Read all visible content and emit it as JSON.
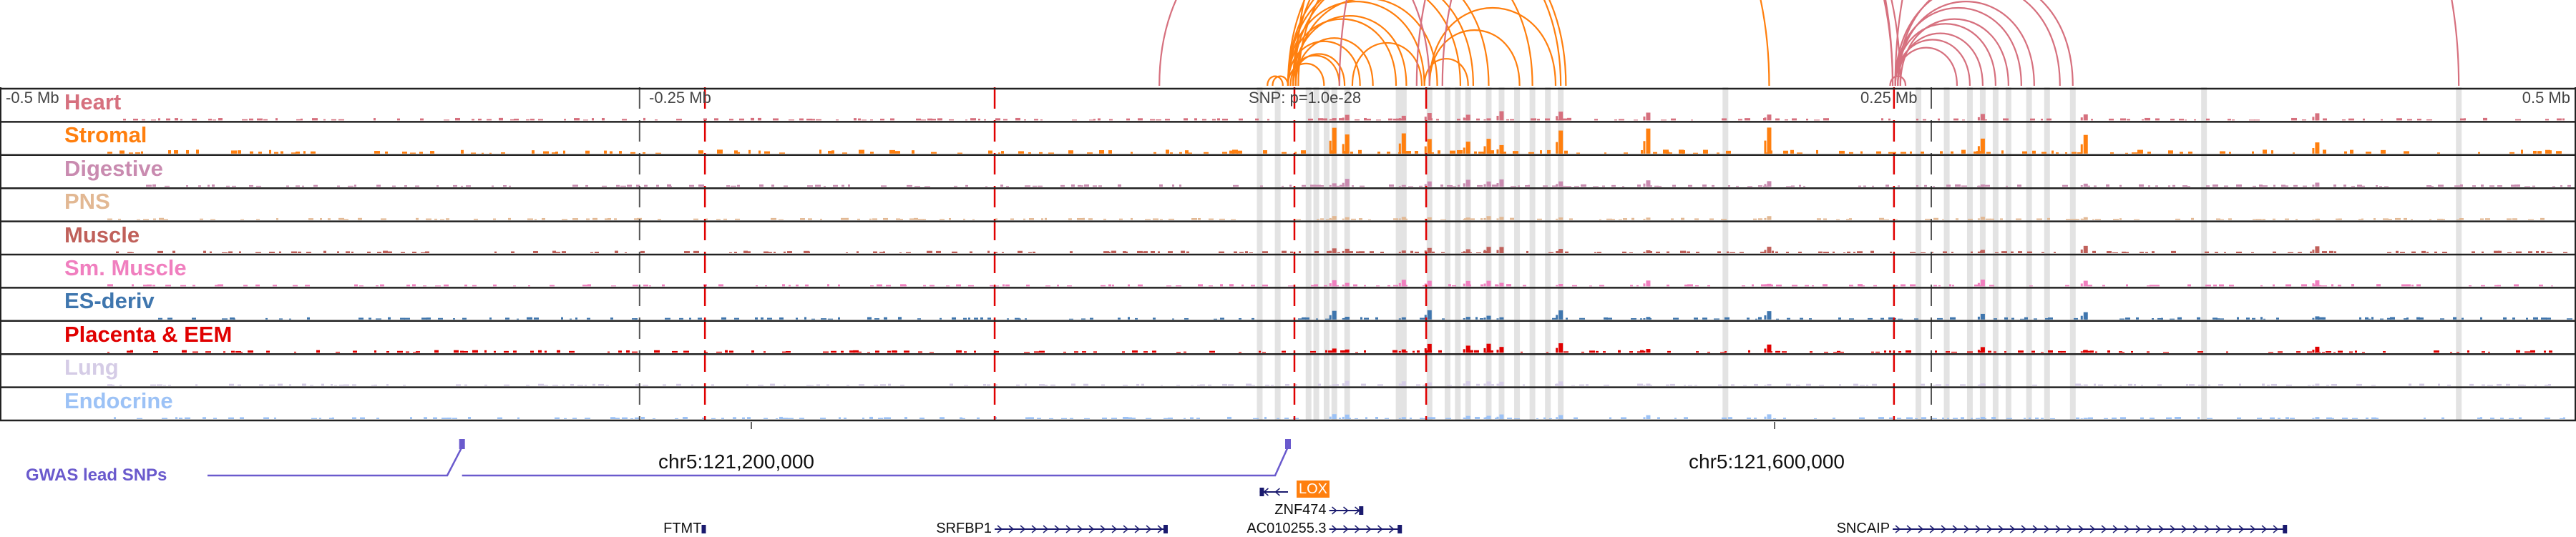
{
  "ruler": {
    "left": "-0.5 Mb",
    "midleft": "-0.25 Mb",
    "snp": "SNP: p=1.0e-28",
    "midright": "0.25 Mb",
    "right": "0.5 Mb"
  },
  "coords": [
    "chr5:121,200,000",
    "chr5:121,600,000"
  ],
  "gwas_label": "GWAS lead SNPs",
  "tracks": [
    {
      "label": "Heart",
      "color": "#d6707e",
      "gain": 0.35
    },
    {
      "label": "Stromal",
      "color": "#ff7f0e",
      "gain": 1.0
    },
    {
      "label": "Digestive",
      "color": "#c98bb0",
      "gain": 0.3
    },
    {
      "label": "PNS",
      "color": "#e2b893",
      "gain": 0.15
    },
    {
      "label": "Muscle",
      "color": "#c0605a",
      "gain": 0.3
    },
    {
      "label": "Sm. Muscle",
      "color": "#f07fbf",
      "gain": 0.25
    },
    {
      "label": "ES-deriv",
      "color": "#3f76ae",
      "gain": 0.35
    },
    {
      "label": "Placenta & EEM",
      "color": "#e00000",
      "gain": 0.35
    },
    {
      "label": "Lung",
      "color": "#d5cce6",
      "gain": 0.2
    },
    {
      "label": "Endocrine",
      "color": "#9cc2f6",
      "gain": 0.2
    }
  ],
  "highlight_regions_mb": [
    -0.011,
    -0.004,
    0.008,
    0.011,
    0.015,
    0.018,
    0.023,
    0.043,
    0.045,
    0.055,
    0.062,
    0.066,
    0.07,
    0.078,
    0.083,
    0.089,
    0.095,
    0.101,
    0.106,
    0.17,
    0.245,
    0.256,
    0.265,
    0.27,
    0.275,
    0.28,
    0.288,
    0.295,
    0.305,
    0.356,
    0.455
  ],
  "snp_lines_mb": [
    -0.2266,
    -0.114,
    0.0025,
    0.0537,
    0.2355
  ],
  "peaks_mb": [
    0.018,
    0.023,
    0.045,
    0.055,
    0.07,
    0.078,
    0.083,
    0.106,
    0.14,
    0.187,
    0.27,
    0.31,
    0.4
  ],
  "arcs": {
    "orange_color": "#ff7f0e",
    "pink_color": "#d6707e",
    "orange": [
      [
        -0.008,
        -0.002
      ],
      [
        -0.006,
        0.0
      ],
      [
        0.0,
        0.014
      ],
      [
        0.001,
        0.02
      ],
      [
        0.002,
        0.022
      ],
      [
        0.0,
        0.028
      ],
      [
        0.003,
        0.033
      ],
      [
        0.0,
        0.042
      ],
      [
        0.002,
        0.046
      ],
      [
        0.0,
        0.053
      ],
      [
        0.003,
        0.058
      ],
      [
        0.0,
        0.067
      ],
      [
        0.002,
        0.072
      ],
      [
        0.0,
        0.078
      ],
      [
        0.004,
        0.095
      ],
      [
        0.0,
        0.106
      ],
      [
        0.002,
        0.108
      ],
      [
        0.025,
        0.052
      ],
      [
        0.053,
        0.07
      ],
      [
        0.055,
        0.09
      ],
      [
        0.055,
        0.104
      ],
      [
        0.003,
        0.187
      ]
    ],
    "pink": [
      [
        -0.05,
        0.055
      ],
      [
        0.02,
        0.235
      ],
      [
        0.05,
        0.235
      ],
      [
        0.06,
        0.238
      ],
      [
        0.234,
        0.24
      ],
      [
        0.236,
        0.26
      ],
      [
        0.236,
        0.265
      ],
      [
        0.237,
        0.27
      ],
      [
        0.236,
        0.275
      ],
      [
        0.238,
        0.28
      ],
      [
        0.236,
        0.285
      ],
      [
        0.237,
        0.29
      ],
      [
        0.236,
        0.3
      ],
      [
        0.237,
        0.305
      ],
      [
        0.236,
        0.455
      ]
    ]
  },
  "genes": [
    {
      "name": "LOX",
      "strand": "-",
      "start_mb": -0.011,
      "end_mb": 0.0
    },
    {
      "name": "ZNF474",
      "strand": "+",
      "start_mb": 0.016,
      "end_mb": 0.029
    },
    {
      "name": "AC010255.3",
      "strand": "+",
      "start_mb": 0.016,
      "end_mb": 0.044
    },
    {
      "name": "FTMT",
      "strand": "+",
      "start_mb": -0.2268,
      "end_mb": -0.2265
    },
    {
      "name": "SRFBP1",
      "strand": "+",
      "start_mb": -0.114,
      "end_mb": -0.047
    },
    {
      "name": "SNCAIP",
      "strand": "+",
      "start_mb": 0.235,
      "end_mb": 0.388
    }
  ],
  "gwas_snps_mb": [
    -0.321,
    0.0
  ]
}
